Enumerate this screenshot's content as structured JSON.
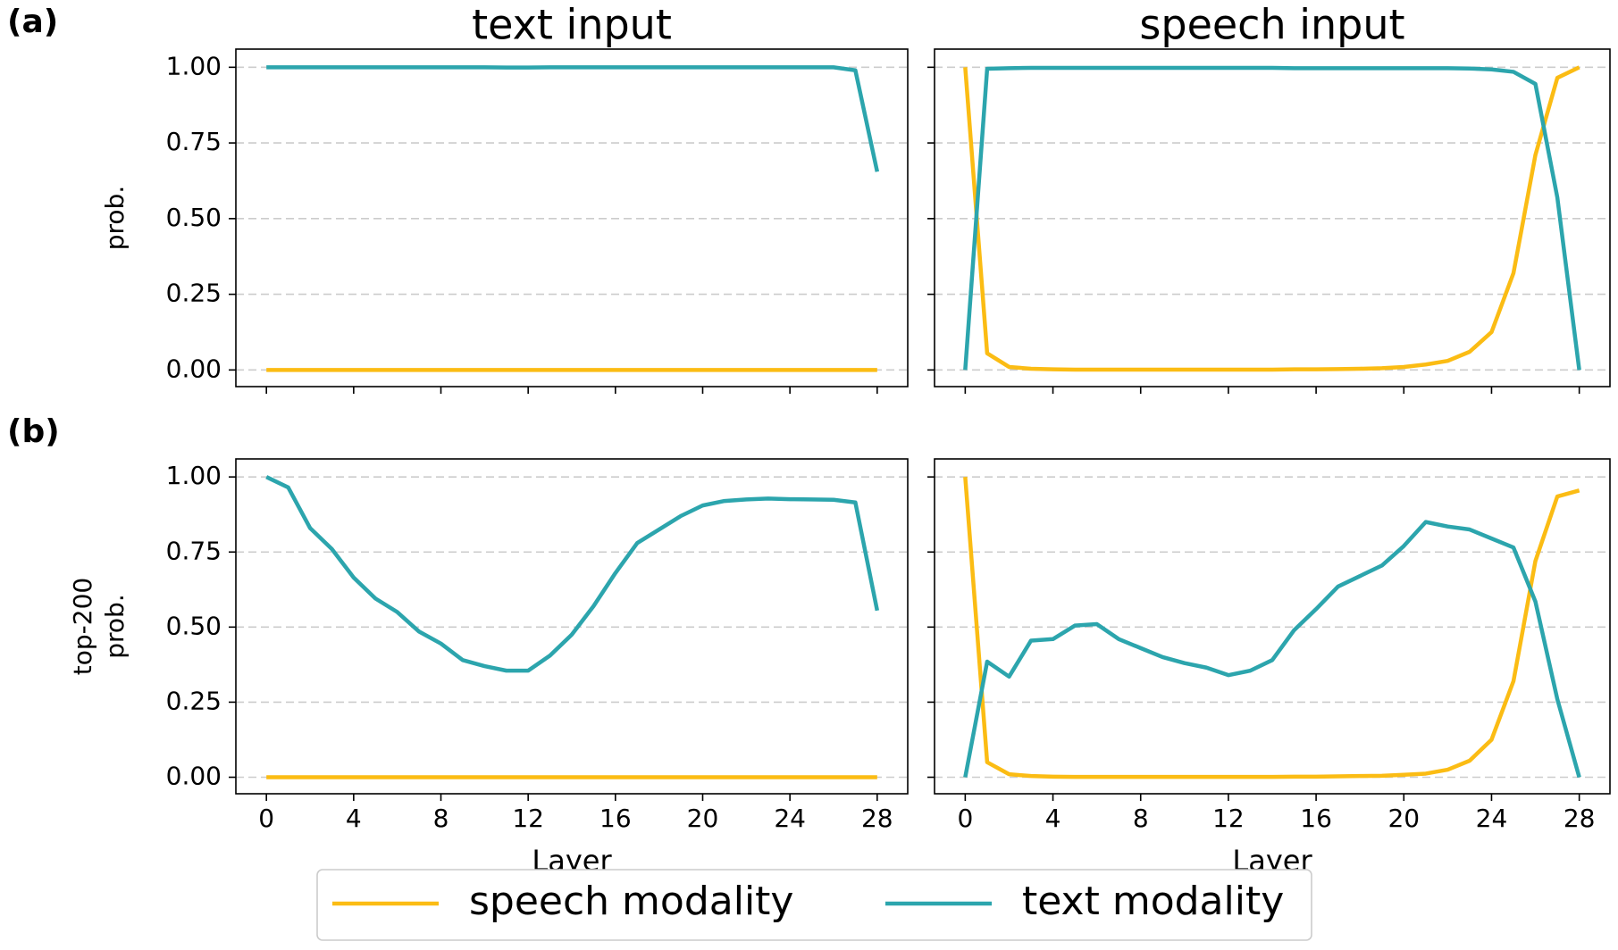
{
  "chart_data": [
    {
      "type": "line",
      "panel_label": "(a)",
      "title": "text input",
      "ylabel": [
        "prob."
      ],
      "x": [
        0,
        1,
        2,
        3,
        4,
        5,
        6,
        7,
        8,
        9,
        10,
        11,
        12,
        13,
        14,
        15,
        16,
        17,
        18,
        19,
        20,
        21,
        22,
        23,
        24,
        25,
        26,
        27,
        28
      ],
      "xlim": [
        -1.4,
        29.4
      ],
      "xticks": [
        0,
        4,
        8,
        12,
        16,
        20,
        24,
        28
      ],
      "x_tick_labels": false,
      "ylim": [
        -0.055,
        1.06
      ],
      "yticks": [
        {
          "value": 0,
          "label": "0.00"
        },
        {
          "value": 0.25,
          "label": "0.25"
        },
        {
          "value": 0.5,
          "label": "0.50"
        },
        {
          "value": 0.75,
          "label": "0.75"
        },
        {
          "value": 1,
          "label": "1.00"
        }
      ],
      "grid": true,
      "legend": "lower center",
      "series": [
        {
          "name": "speech modality",
          "color": "#fbbc14",
          "values": [
            0,
            0,
            0,
            0,
            0,
            0,
            0,
            0,
            0,
            0,
            0,
            0,
            0,
            0,
            0,
            0,
            0,
            0,
            0,
            0,
            0,
            0,
            0,
            0,
            0,
            0,
            0,
            0,
            0
          ]
        },
        {
          "name": "text modality",
          "color": "#2ca5ad",
          "values": [
            1,
            1,
            1,
            1,
            1,
            1,
            1,
            1,
            1,
            1,
            1,
            0.999,
            0.999,
            1,
            1,
            1,
            1,
            1,
            1,
            1,
            1,
            1,
            1,
            1,
            1,
            1,
            1,
            0.99,
            0.655
          ]
        }
      ]
    },
    {
      "type": "line",
      "title": "speech input",
      "x": [
        0,
        1,
        2,
        3,
        4,
        5,
        6,
        7,
        8,
        9,
        10,
        11,
        12,
        13,
        14,
        15,
        16,
        17,
        18,
        19,
        20,
        21,
        22,
        23,
        24,
        25,
        26,
        27,
        28
      ],
      "xlim": [
        -1.4,
        29.4
      ],
      "xticks": [
        0,
        4,
        8,
        12,
        16,
        20,
        24,
        28
      ],
      "x_tick_labels": false,
      "ylim": [
        -0.055,
        1.06
      ],
      "yticks": [
        0,
        0.25,
        0.5,
        0.75,
        1
      ],
      "y_tick_labels": false,
      "grid": true,
      "series": [
        {
          "color": "#fbbc14",
          "values": [
            1,
            0.055,
            0.01,
            0.004,
            0.002,
            0.001,
            0.001,
            0.001,
            0.001,
            0.001,
            0.001,
            0.001,
            0.001,
            0.001,
            0.001,
            0.002,
            0.002,
            0.003,
            0.004,
            0.006,
            0.01,
            0.018,
            0.03,
            0.06,
            0.125,
            0.32,
            0.71,
            0.965,
            1
          ]
        },
        {
          "color": "#2ca5ad",
          "values": [
            0,
            0.995,
            0.997,
            0.998,
            0.998,
            0.998,
            0.998,
            0.998,
            0.998,
            0.998,
            0.998,
            0.998,
            0.998,
            0.998,
            0.998,
            0.997,
            0.997,
            0.997,
            0.997,
            0.997,
            0.997,
            0.997,
            0.997,
            0.996,
            0.993,
            0.985,
            0.945,
            0.57,
            0
          ]
        }
      ]
    },
    {
      "type": "line",
      "panel_label": "(b)",
      "ylabel": [
        "top-200",
        "prob."
      ],
      "xlabel": "Layer",
      "x": [
        0,
        1,
        2,
        3,
        4,
        5,
        6,
        7,
        8,
        9,
        10,
        11,
        12,
        13,
        14,
        15,
        16,
        17,
        18,
        19,
        20,
        21,
        22,
        23,
        24,
        25,
        26,
        27,
        28
      ],
      "xlim": [
        -1.4,
        29.4
      ],
      "xticks": [
        0,
        4,
        8,
        12,
        16,
        20,
        24,
        28
      ],
      "ylim": [
        -0.055,
        1.06
      ],
      "yticks": [
        {
          "value": 0,
          "label": "0.00"
        },
        {
          "value": 0.25,
          "label": "0.25"
        },
        {
          "value": 0.5,
          "label": "0.50"
        },
        {
          "value": 0.75,
          "label": "0.75"
        },
        {
          "value": 1,
          "label": "1.00"
        }
      ],
      "grid": true,
      "series": [
        {
          "color": "#fbbc14",
          "values": [
            0,
            0,
            0,
            0,
            0,
            0,
            0,
            0,
            0,
            0,
            0,
            0,
            0,
            0,
            0,
            0,
            0,
            0,
            0,
            0,
            0,
            0,
            0,
            0,
            0,
            0,
            0,
            0,
            0
          ]
        },
        {
          "color": "#2ca5ad",
          "values": [
            1,
            0.965,
            0.83,
            0.76,
            0.665,
            0.595,
            0.55,
            0.485,
            0.445,
            0.39,
            0.37,
            0.355,
            0.355,
            0.405,
            0.475,
            0.57,
            0.68,
            0.78,
            0.825,
            0.87,
            0.905,
            0.92,
            0.925,
            0.928,
            0.926,
            0.925,
            0.924,
            0.915,
            0.555
          ]
        }
      ]
    },
    {
      "type": "line",
      "xlabel": "Layer",
      "x": [
        0,
        1,
        2,
        3,
        4,
        5,
        6,
        7,
        8,
        9,
        10,
        11,
        12,
        13,
        14,
        15,
        16,
        17,
        18,
        19,
        20,
        21,
        22,
        23,
        24,
        25,
        26,
        27,
        28
      ],
      "xlim": [
        -1.4,
        29.4
      ],
      "xticks": [
        0,
        4,
        8,
        12,
        16,
        20,
        24,
        28
      ],
      "ylim": [
        -0.055,
        1.06
      ],
      "yticks": [
        0,
        0.25,
        0.5,
        0.75,
        1
      ],
      "y_tick_labels": false,
      "grid": true,
      "series": [
        {
          "color": "#fbbc14",
          "values": [
            1,
            0.05,
            0.01,
            0.004,
            0.002,
            0.001,
            0.001,
            0.001,
            0.001,
            0.001,
            0.001,
            0.001,
            0.001,
            0.001,
            0.001,
            0.002,
            0.002,
            0.003,
            0.004,
            0.005,
            0.008,
            0.012,
            0.025,
            0.055,
            0.125,
            0.32,
            0.72,
            0.935,
            0.955
          ]
        },
        {
          "color": "#2ca5ad",
          "values": [
            0,
            0.385,
            0.335,
            0.455,
            0.46,
            0.505,
            0.51,
            0.46,
            0.43,
            0.4,
            0.38,
            0.365,
            0.34,
            0.355,
            0.39,
            0.49,
            0.56,
            0.635,
            0.67,
            0.705,
            0.77,
            0.85,
            0.835,
            0.825,
            0.795,
            0.765,
            0.585,
            0.26,
            0
          ]
        }
      ]
    }
  ]
}
